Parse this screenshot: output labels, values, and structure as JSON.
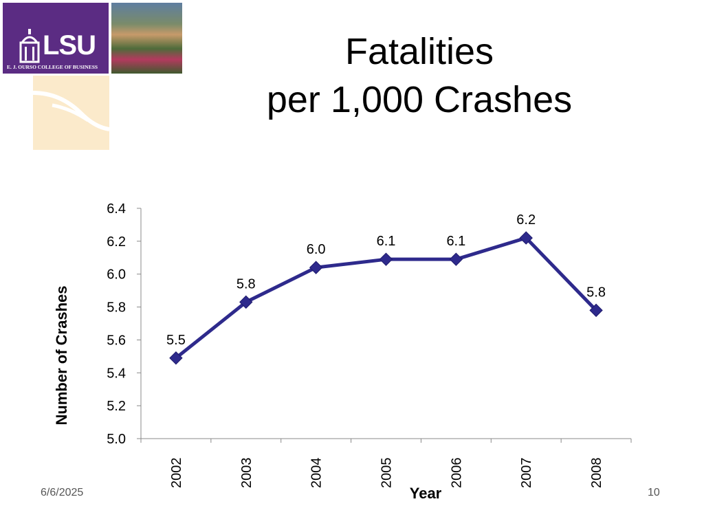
{
  "logo": {
    "name": "LSU",
    "subtitle": "E. J. OURSO COLLEGE OF BUSINESS"
  },
  "slide": {
    "title_line1": "Fatalities",
    "title_line2": "per 1,000 Crashes",
    "date": "6/6/2025",
    "page_number": "10"
  },
  "colors": {
    "line": "#2e2a8c",
    "logo_bg": "#5b2c83"
  },
  "chart_data": {
    "type": "line",
    "title": "Fatalities per 1,000 Crashes",
    "xlabel": "Year",
    "ylabel": "Number of Crashes",
    "categories": [
      "2002",
      "2003",
      "2004",
      "2005",
      "2006",
      "2007",
      "2008"
    ],
    "series": [
      {
        "name": "Fatalities per 1,000 Crashes",
        "values": [
          5.49,
          5.83,
          6.04,
          6.09,
          6.09,
          6.22,
          5.78
        ],
        "labels": [
          "5.5",
          "5.8",
          "6.0",
          "6.1",
          "6.1",
          "6.2",
          "5.8"
        ]
      }
    ],
    "ylim": [
      5.0,
      6.4
    ],
    "yticks": [
      "5.0",
      "5.2",
      "5.4",
      "5.6",
      "5.8",
      "6.0",
      "6.2",
      "6.4"
    ],
    "grid": false,
    "legend": "none"
  }
}
